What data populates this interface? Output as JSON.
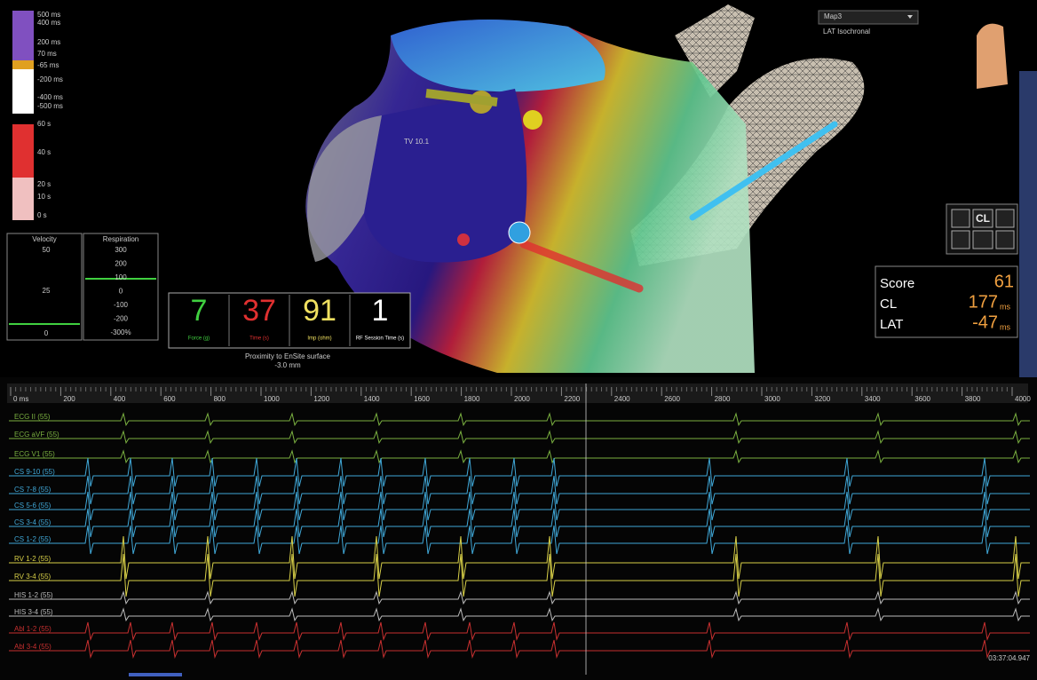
{
  "scales": {
    "lat": [
      "500 ms",
      "400 ms",
      "200 ms",
      "70 ms",
      "-65 ms",
      "-200 ms",
      "-400 ms",
      "-500 ms"
    ],
    "time": [
      "60 s",
      "40 s",
      "20 s",
      "10 s",
      "0 s"
    ]
  },
  "velocity": {
    "title": "Velocity",
    "ticks": [
      "50",
      "25",
      "0"
    ]
  },
  "respiration": {
    "title": "Respiration",
    "ticks": [
      "300",
      "200",
      "100",
      "0",
      "-100",
      "-200",
      "-300%"
    ]
  },
  "indicators": [
    {
      "value": "7",
      "label": "Force (g)"
    },
    {
      "value": "37",
      "label": "Time (s)"
    },
    {
      "value": "91",
      "label": "Imp (ohm)"
    },
    {
      "value": "1",
      "label": "RF Session Time (s)"
    }
  ],
  "proximity": {
    "label": "Proximity to EnSite surface",
    "value": "-3.0 mm"
  },
  "map": {
    "label": "TV 10.1",
    "selector": "Map3",
    "mode": "LAT Isochronal"
  },
  "toolbar": {
    "cl": "CL"
  },
  "metrics": [
    {
      "name": "Score",
      "value": "61"
    },
    {
      "name": "CL",
      "value": "177",
      "unit": "ms"
    },
    {
      "name": "LAT",
      "value": "-47",
      "unit": "ms"
    }
  ],
  "timeline": {
    "labels": [
      "0 ms",
      "200",
      "400",
      "600",
      "800",
      "1000",
      "1200",
      "1400",
      "1600",
      "1800",
      "2000",
      "2200",
      "2400",
      "2600",
      "2800",
      "3000",
      "3200",
      "3400",
      "3600",
      "3800",
      "4000"
    ]
  },
  "channels": [
    "ECG II (55)",
    "ECG aVF (55)",
    "ECG V1 (55)",
    "CS 9-10 (55)",
    "CS 7-8 (55)",
    "CS 5-6 (55)",
    "CS 3-4 (55)",
    "CS 1-2 (55)",
    "RV 1-2 (55)",
    "RV 3-4 (55)",
    "HIS 1-2 (55)",
    "HIS 3-4 (55)",
    "Abl 1-2 (55)",
    "Abl 3-4 (55)"
  ],
  "timestamp": "03:37:04.947"
}
